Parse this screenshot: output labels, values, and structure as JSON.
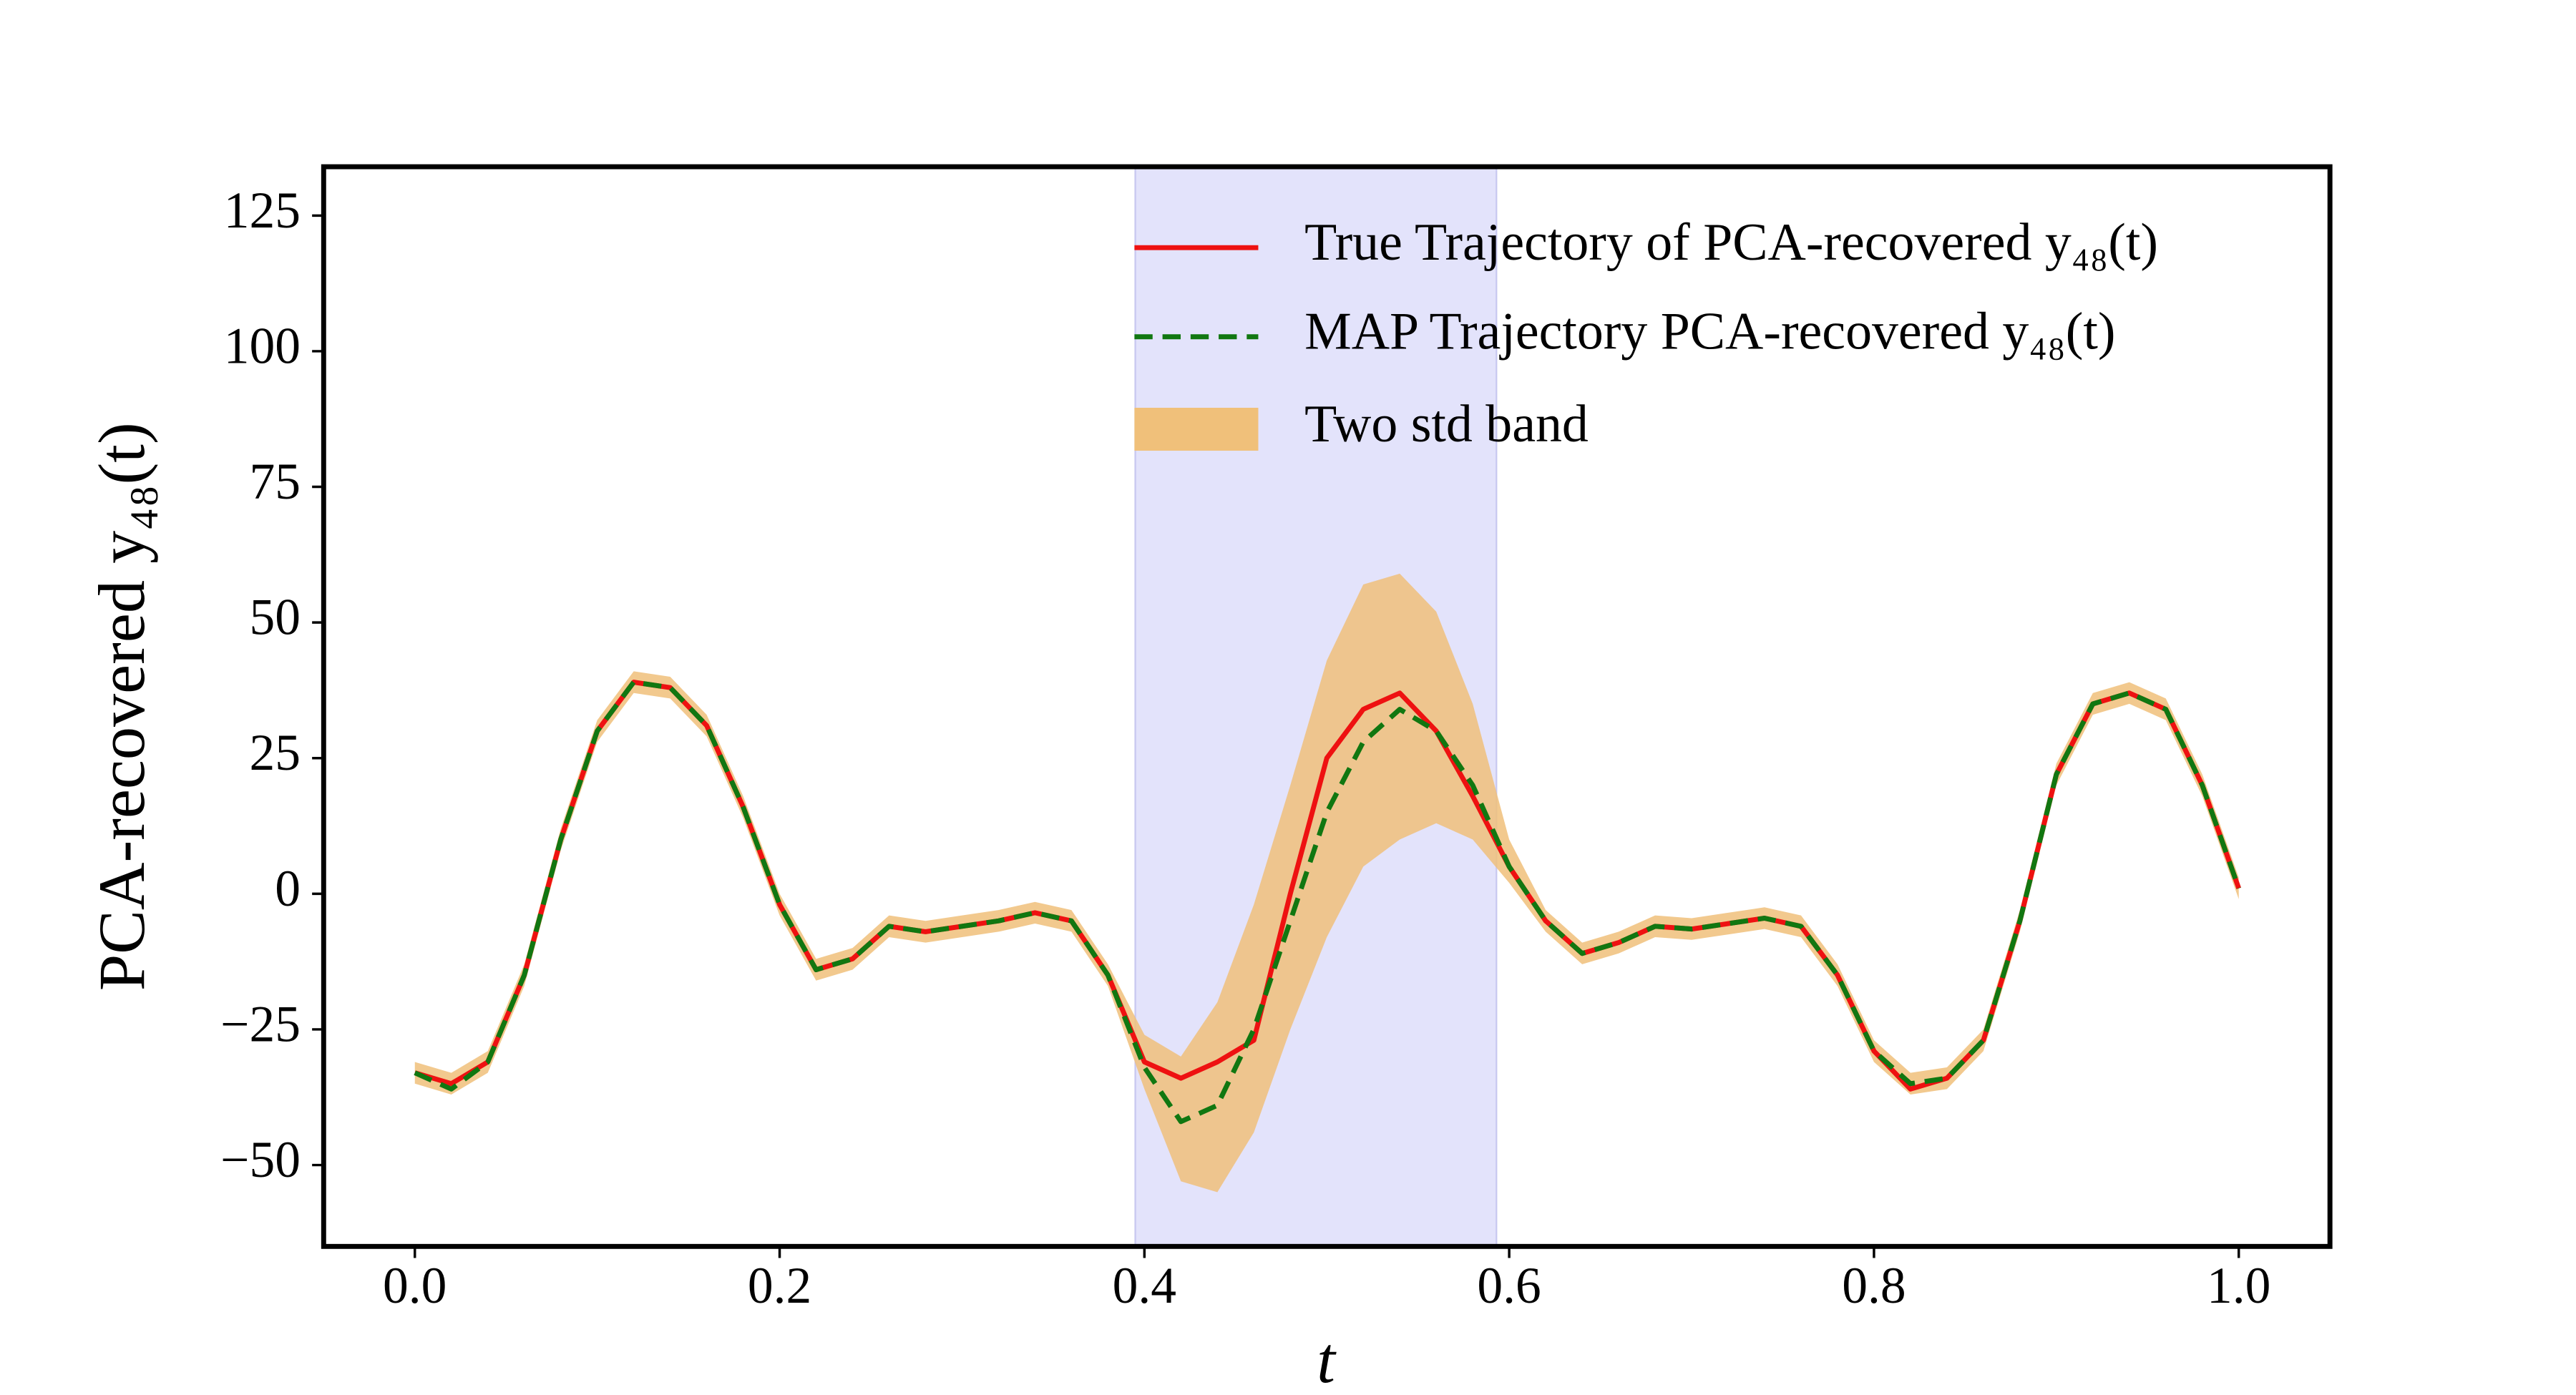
{
  "chart_data": {
    "type": "line",
    "xlabel": "t",
    "ylabel": "PCA-recovered y₄₈(t)",
    "xlim": [
      -0.05,
      1.05
    ],
    "ylim": [
      -65,
      134
    ],
    "xticks": [
      {
        "value": 0,
        "label": "0.0"
      },
      {
        "value": 0.2,
        "label": "0.2"
      },
      {
        "value": 0.4,
        "label": "0.4"
      },
      {
        "value": 0.6,
        "label": "0.6"
      },
      {
        "value": 0.8,
        "label": "0.8"
      },
      {
        "value": 1,
        "label": "1.0"
      }
    ],
    "yticks": [
      {
        "value": -50,
        "label": "−50"
      },
      {
        "value": -25,
        "label": "−25"
      },
      0,
      25,
      50,
      75,
      100,
      125
    ],
    "grid": false,
    "legend": "upper right",
    "highlight": {
      "range": [
        0.395,
        0.593
      ],
      "color": "#e3e3fb"
    },
    "x": [
      0,
      0.02,
      0.04,
      0.06,
      0.08,
      0.1,
      0.12,
      0.14,
      0.16,
      0.18,
      0.2,
      0.22,
      0.24,
      0.26,
      0.28,
      0.3,
      0.32,
      0.34,
      0.36,
      0.38,
      0.4,
      0.42,
      0.44,
      0.46,
      0.48,
      0.5,
      0.52,
      0.54,
      0.56,
      0.58,
      0.6,
      0.62,
      0.64,
      0.66,
      0.68,
      0.7,
      0.72,
      0.74,
      0.76,
      0.78,
      0.8,
      0.82,
      0.84,
      0.86,
      0.88,
      0.9,
      0.92,
      0.94,
      0.96,
      0.98,
      1
    ],
    "band": {
      "name": "Two std band",
      "color": "#f0c07a",
      "upper": [
        -31,
        -33,
        -29,
        -13,
        12,
        32,
        41,
        40,
        33,
        18,
        0,
        -12,
        -10,
        -4,
        -5,
        -4,
        -3,
        -1.5,
        -3,
        -13,
        -26,
        -30,
        -20,
        -2,
        20,
        43,
        57,
        59,
        52,
        35,
        10,
        -3,
        -9,
        -7,
        -4,
        -4.5,
        -3.5,
        -2.5,
        -4,
        -13,
        -27,
        -33,
        -32,
        -25,
        -3,
        24,
        37,
        39,
        36,
        22,
        3
      ],
      "lower": [
        -35,
        -37,
        -33,
        -17,
        8,
        28,
        37,
        36,
        29,
        14,
        -4,
        -16,
        -14,
        -8,
        -9,
        -8,
        -7,
        -5.5,
        -7,
        -17,
        -36,
        -53,
        -55,
        -44,
        -25,
        -8,
        5,
        10,
        13,
        10,
        2,
        -7,
        -13,
        -11,
        -8,
        -8.5,
        -7.5,
        -6.5,
        -8,
        -17,
        -31,
        -37,
        -36,
        -29,
        -7,
        20,
        33,
        35,
        32,
        18,
        -1
      ]
    },
    "series": [
      {
        "name": "True Trajectory of PCA-recovered y₄₈(t)",
        "color": "#ee1111",
        "style": "solid",
        "values": [
          -33,
          -35,
          -31,
          -15,
          10,
          30,
          39,
          38,
          31,
          16,
          -2,
          -14,
          -12,
          -6,
          -7,
          -6,
          -5,
          -3.5,
          -5,
          -15,
          -31,
          -34,
          -31,
          -27,
          0,
          25,
          34,
          37,
          30,
          18,
          5,
          -5,
          -11,
          -9,
          -6,
          -6.5,
          -5.5,
          -4.5,
          -6,
          -15,
          -29,
          -36,
          -34,
          -27,
          -5,
          22,
          35,
          37,
          34,
          20,
          1
        ]
      },
      {
        "name": "MAP Trajectory PCA-recovered y₄₈(t)",
        "color": "#117711",
        "style": "dashed",
        "values": [
          -33,
          -36,
          -31,
          -15,
          10,
          30,
          39,
          38,
          31,
          16,
          -2,
          -14,
          -12,
          -6,
          -7,
          -6,
          -5,
          -3.5,
          -5,
          -15,
          -32,
          -42,
          -39,
          -25,
          -5,
          15,
          28,
          34,
          30,
          20,
          5,
          -5,
          -11,
          -9,
          -6,
          -6.5,
          -5.5,
          -4.5,
          -6,
          -15,
          -29,
          -35,
          -34,
          -27,
          -5,
          22,
          35,
          37,
          34,
          20,
          1
        ]
      }
    ]
  }
}
